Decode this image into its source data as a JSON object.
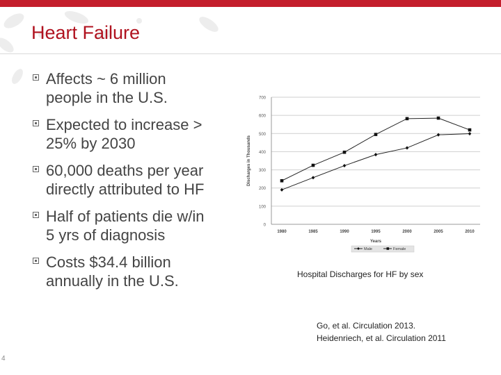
{
  "slide": {
    "title": "Heart Failure",
    "accent_color": "#c41e2c",
    "title_color": "#b0121f",
    "page_number": "4"
  },
  "bullets": [
    {
      "line1": "Affects ~ 6 million",
      "line2": "people in the U.S."
    },
    {
      "line1": "Expected to increase >",
      "line2": "25% by 2030"
    },
    {
      "line1": "60,000 deaths per year",
      "line2": "directly attributed to HF"
    },
    {
      "line1": "Half of patients die w/in",
      "line2": "5 yrs of diagnosis"
    },
    {
      "line1": "Costs $34.4 billion",
      "line2": "annually in the U.S."
    }
  ],
  "figure": {
    "caption": "Hospital Discharges for HF by sex",
    "references": [
      "Go, et al. Circulation 2013.",
      "Heidenriech, et al. Circulation 2011"
    ]
  },
  "chart_data": {
    "type": "line",
    "xlabel": "Years",
    "ylabel": "Discharges in Thousands",
    "x": [
      1980,
      1985,
      1990,
      1995,
      2000,
      2005,
      2010
    ],
    "ylim": [
      0,
      700
    ],
    "yticks": [
      0,
      100,
      200,
      300,
      400,
      500,
      600,
      700
    ],
    "grid": true,
    "legend_position": "bottom",
    "series": [
      {
        "name": "Male",
        "marker": "diamond",
        "values": [
          190,
          257,
          323,
          384,
          421,
          493,
          499
        ]
      },
      {
        "name": "Female",
        "marker": "square",
        "values": [
          240,
          325,
          397,
          495,
          582,
          585,
          520
        ]
      }
    ]
  }
}
